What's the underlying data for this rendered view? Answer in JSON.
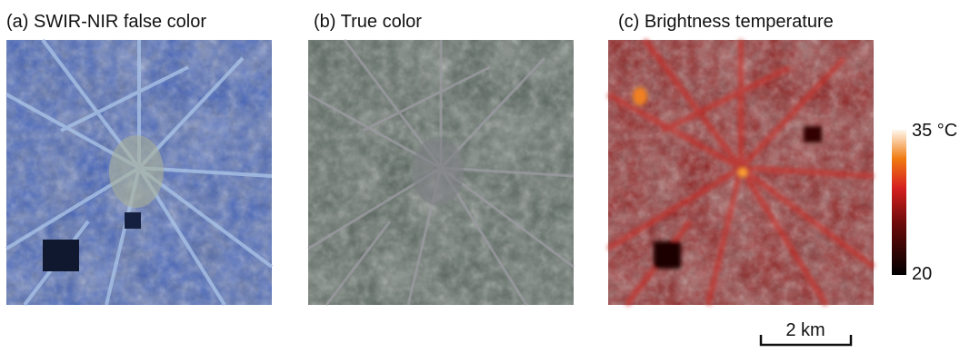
{
  "panels": [
    {
      "title": "(a) SWIR-NIR false color"
    },
    {
      "title": "(b) True color"
    },
    {
      "title": "(c) Brightness temperature"
    }
  ],
  "colorbar": {
    "max_label": "35 °C",
    "min_label": "20"
  },
  "scale_bar": {
    "label": "2 km"
  }
}
